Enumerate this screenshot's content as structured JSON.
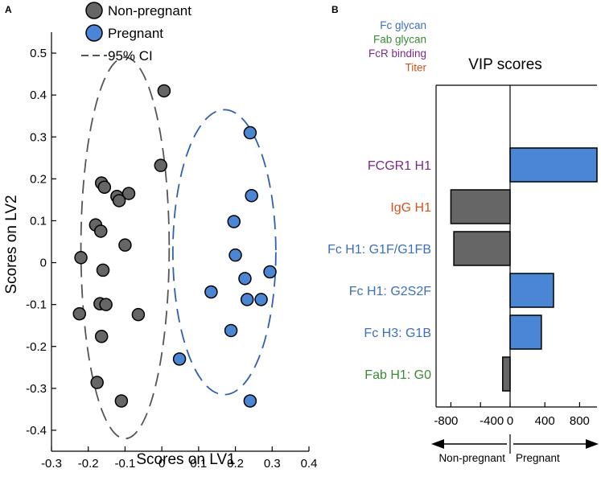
{
  "panel_a_label": "A",
  "panel_b_label": "B",
  "chart_data": [
    {
      "type": "scatter",
      "panel": "A",
      "xlabel": "Scores on LV1",
      "ylabel": "Scores on LV2",
      "xlim": [
        -0.3,
        0.4
      ],
      "ylim": [
        -0.45,
        0.55
      ],
      "xticks": [
        -0.3,
        -0.2,
        -0.1,
        0,
        0.1,
        0.2,
        0.3,
        0.4
      ],
      "xtick_labels": [
        "-0.3",
        "-0.2",
        "-0.1",
        "0",
        "0.1",
        "0.2",
        "0.3",
        "0.4"
      ],
      "yticks": [
        -0.4,
        -0.3,
        -0.2,
        -0.1,
        0,
        0.1,
        0.2,
        0.3,
        0.4,
        0.5
      ],
      "ytick_labels": [
        "-0.4",
        "-0.3",
        "-0.2",
        "-0.1",
        "0",
        "0.1",
        "0.2",
        "0.3",
        "0.4",
        "0.5"
      ],
      "legend": [
        {
          "label": "Non-pregnant",
          "kind": "marker",
          "color": "#666666"
        },
        {
          "label": "Pregnant",
          "kind": "marker",
          "color": "#4a86d4"
        },
        {
          "label": "95% CI",
          "kind": "dashed-line",
          "color": "#555555"
        }
      ],
      "series": [
        {
          "name": "Non-pregnant",
          "color": "#666666",
          "points": [
            [
              0.006,
              0.41
            ],
            [
              -0.003,
              0.232
            ],
            [
              -0.164,
              0.19
            ],
            [
              -0.156,
              0.18
            ],
            [
              -0.122,
              0.158
            ],
            [
              -0.09,
              0.165
            ],
            [
              -0.116,
              0.148
            ],
            [
              -0.18,
              0.09
            ],
            [
              -0.166,
              0.075
            ],
            [
              -0.1,
              0.042
            ],
            [
              -0.22,
              0.012
            ],
            [
              -0.16,
              -0.018
            ],
            [
              -0.168,
              -0.098
            ],
            [
              -0.152,
              -0.1
            ],
            [
              -0.224,
              -0.122
            ],
            [
              -0.064,
              -0.124
            ],
            [
              -0.164,
              -0.176
            ],
            [
              -0.176,
              -0.286
            ],
            [
              -0.11,
              -0.33
            ]
          ]
        },
        {
          "name": "Pregnant",
          "color": "#4a86d4",
          "points": [
            [
              0.24,
              0.31
            ],
            [
              0.244,
              0.16
            ],
            [
              0.196,
              0.098
            ],
            [
              0.2,
              0.018
            ],
            [
              0.226,
              -0.038
            ],
            [
              0.294,
              -0.022
            ],
            [
              0.134,
              -0.07
            ],
            [
              0.232,
              -0.088
            ],
            [
              0.27,
              -0.088
            ],
            [
              0.188,
              -0.162
            ],
            [
              0.048,
              -0.23
            ],
            [
              0.24,
              -0.33
            ]
          ]
        }
      ],
      "confidence_ellipses": [
        {
          "group": "Non-pregnant",
          "center": [
            -0.1,
            0.035
          ],
          "semi_axes": [
            0.12,
            0.455
          ],
          "color": "#555555"
        },
        {
          "group": "Pregnant",
          "center": [
            0.17,
            0.025
          ],
          "semi_axes": [
            0.14,
            0.34
          ],
          "color": "#2e5fb0"
        }
      ]
    },
    {
      "type": "bar",
      "orientation": "horizontal",
      "panel": "B",
      "title": "VIP scores",
      "xlim": [
        -1000,
        1000
      ],
      "xticks": [
        -800,
        -400,
        0,
        400,
        800
      ],
      "xtick_labels": [
        "-800",
        "-400",
        "0",
        "400",
        "800"
      ],
      "categories": [
        "FCGR1 H1",
        "IgG H1",
        "Fc H1: G1F/G1FB",
        "Fc H1: G2S2F",
        "Fc H3: G1B",
        "Fab H1: G0"
      ],
      "category_colors": [
        "#7a2a8a",
        "#d0541f",
        "#3d6fbf",
        "#3d6fbf",
        "#3d6fbf",
        "#3a8a36"
      ],
      "values": [
        1000,
        -800,
        -760,
        500,
        360,
        -100
      ],
      "bar_colors": {
        "positive": "#4a86d4",
        "negative": "#666666"
      },
      "legend": [
        {
          "label": "Fc glycan",
          "color": "#3d6fbf"
        },
        {
          "label": "Fab glycan",
          "color": "#3a8a36"
        },
        {
          "label": "FcR binding",
          "color": "#7a2a8a"
        },
        {
          "label": "Titer",
          "color": "#d0541f"
        }
      ],
      "direction_labels": {
        "left": "Non-pregnant",
        "right": "Pregnant"
      }
    }
  ]
}
